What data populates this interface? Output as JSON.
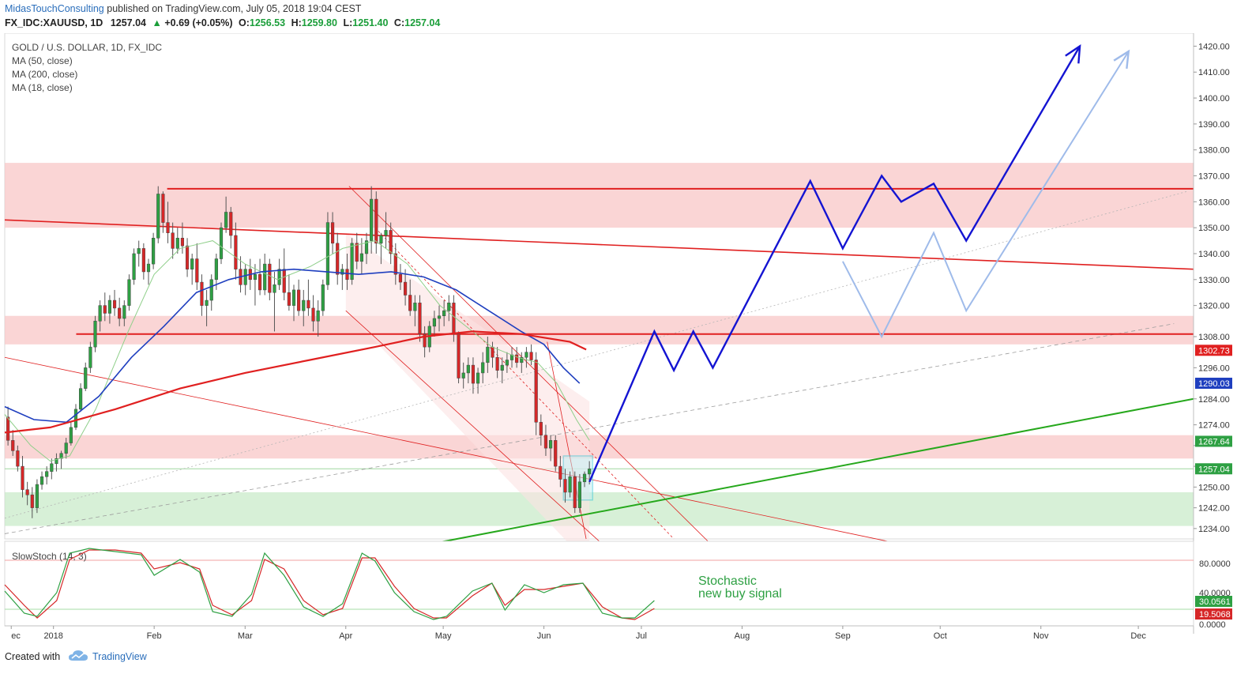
{
  "header": {
    "author": "MidasTouchConsulting",
    "published": " published on TradingView.com, July 05, 2018 19:04 CEST",
    "symbol": "FX_IDC:XAUUSD, 1D",
    "last": "1257.04",
    "change_arrow": "▲",
    "change": "+0.69 (+0.05%)",
    "open_label": "O:",
    "open": "1256.53",
    "high_label": "H:",
    "high": "1259.80",
    "low_label": "L:",
    "low": "1251.40",
    "close_label": "C:",
    "close": "1257.04"
  },
  "legend": {
    "title": "GOLD / U.S. DOLLAR, 1D, FX_IDC",
    "ma50": "MA (50, close)",
    "ma200": "MA (200, close)",
    "ma18": "MA (18, close)"
  },
  "stoch": {
    "label": "SlowStoch (14, 3)",
    "annotation_line1": "Stochastic",
    "annotation_line2": "new buy signal",
    "axis": [
      "80.0000",
      "40.0000",
      "0.0000"
    ],
    "badge_k": "30.0561",
    "badge_d": "19.5068"
  },
  "footer": {
    "created": "Created with",
    "brand": "TradingView"
  },
  "colors": {
    "up": "#2ea043",
    "down": "#d62728",
    "ma50": "#1f3fbf",
    "ma200": "#e02020",
    "ma18": "#8fcf8a",
    "resistance": "#e02020",
    "zone_red": "#f8c7c7",
    "zone_green": "#c9ebc9",
    "projection_dark": "#1414d2",
    "projection_light": "#9fbbea",
    "trend_green": "#26a81c"
  },
  "chart_data": {
    "type": "candlestick",
    "title": "GOLD / U.S. DOLLAR, 1D, FX_IDC",
    "ylim": [
      1230,
      1425
    ],
    "y_ticks": [
      1234,
      1242,
      1250,
      1258,
      1266,
      1274,
      1284,
      1296,
      1308,
      1320,
      1330,
      1340,
      1350,
      1360,
      1370,
      1380,
      1390,
      1400,
      1410,
      1420
    ],
    "y_tick_labels": [
      "1234.00",
      "1242.00",
      "1250.00",
      "",
      "",
      "1274.00",
      "1284.00",
      "1296.00",
      "1308.00",
      "1320.00",
      "1330.00",
      "1340.00",
      "1350.00",
      "1360.00",
      "1370.00",
      "1380.00",
      "1390.00",
      "1400.00",
      "1410.00",
      "1420.00"
    ],
    "x_labels": [
      "ec",
      "2018",
      "Feb",
      "Mar",
      "Apr",
      "May",
      "Jun",
      "Jul",
      "Aug",
      "Sep",
      "Oct",
      "Nov",
      "Dec"
    ],
    "x_label_days": [
      -12,
      1,
      32,
      60,
      91,
      121,
      152,
      182,
      213,
      244,
      274,
      305,
      335
    ],
    "xlim_days": [
      -14,
      352
    ],
    "badges": [
      {
        "value": "1302.73",
        "color": "#e02020"
      },
      {
        "value": "1290.03",
        "color": "#1f3fbf"
      },
      {
        "value": "1267.64",
        "color": "#2ea043"
      },
      {
        "value": "1257.04",
        "color": "#2ea043"
      }
    ],
    "zones": [
      {
        "low": 1350,
        "high": 1375,
        "color": "#f8c7c7"
      },
      {
        "low": 1305,
        "high": 1316,
        "color": "#f8c7c7"
      },
      {
        "low": 1261,
        "high": 1270,
        "color": "#f8c7c7"
      },
      {
        "low": 1235,
        "high": 1248,
        "color": "#c9ebc9"
      }
    ],
    "resistance_levels": [
      {
        "value": 1365,
        "from_day": 36
      },
      {
        "value": 1309,
        "from_day": 8
      }
    ],
    "last_price_line": 1257.04,
    "candles_ohlc": [
      [
        1277,
        1281,
        1266,
        1268
      ],
      [
        1268,
        1272,
        1262,
        1264
      ],
      [
        1264,
        1266,
        1256,
        1258
      ],
      [
        1258,
        1262,
        1246,
        1249
      ],
      [
        1249,
        1252,
        1243,
        1247
      ],
      [
        1247,
        1250,
        1238,
        1242
      ],
      [
        1242,
        1253,
        1240,
        1251
      ],
      [
        1251,
        1256,
        1249,
        1254
      ],
      [
        1254,
        1258,
        1251,
        1256
      ],
      [
        1256,
        1261,
        1253,
        1259
      ],
      [
        1259,
        1263,
        1256,
        1261
      ],
      [
        1261,
        1264,
        1257,
        1263
      ],
      [
        1263,
        1269,
        1261,
        1267
      ],
      [
        1267,
        1275,
        1266,
        1273
      ],
      [
        1273,
        1282,
        1272,
        1280
      ],
      [
        1280,
        1290,
        1279,
        1288
      ],
      [
        1288,
        1298,
        1287,
        1296
      ],
      [
        1296,
        1306,
        1294,
        1304
      ],
      [
        1304,
        1316,
        1302,
        1314
      ],
      [
        1314,
        1322,
        1310,
        1320
      ],
      [
        1320,
        1325,
        1314,
        1317
      ],
      [
        1317,
        1324,
        1313,
        1322
      ],
      [
        1322,
        1326,
        1316,
        1319
      ],
      [
        1319,
        1323,
        1312,
        1315
      ],
      [
        1315,
        1322,
        1312,
        1320
      ],
      [
        1320,
        1332,
        1318,
        1330
      ],
      [
        1330,
        1342,
        1328,
        1340
      ],
      [
        1340,
        1345,
        1335,
        1342
      ],
      [
        1342,
        1344,
        1330,
        1333
      ],
      [
        1333,
        1338,
        1328,
        1336
      ],
      [
        1336,
        1348,
        1334,
        1346
      ],
      [
        1346,
        1366,
        1344,
        1363
      ],
      [
        1363,
        1364,
        1348,
        1352
      ],
      [
        1352,
        1360,
        1344,
        1348
      ],
      [
        1348,
        1352,
        1338,
        1342
      ],
      [
        1342,
        1350,
        1340,
        1346
      ],
      [
        1346,
        1352,
        1340,
        1343
      ],
      [
        1343,
        1346,
        1331,
        1334
      ],
      [
        1334,
        1340,
        1328,
        1338
      ],
      [
        1338,
        1344,
        1326,
        1329
      ],
      [
        1329,
        1332,
        1316,
        1320
      ],
      [
        1320,
        1326,
        1312,
        1322
      ],
      [
        1322,
        1332,
        1318,
        1330
      ],
      [
        1330,
        1340,
        1326,
        1338
      ],
      [
        1338,
        1352,
        1336,
        1350
      ],
      [
        1350,
        1362,
        1348,
        1356
      ],
      [
        1356,
        1358,
        1342,
        1347
      ],
      [
        1347,
        1352,
        1330,
        1334
      ],
      [
        1334,
        1339,
        1325,
        1328
      ],
      [
        1328,
        1336,
        1324,
        1334
      ],
      [
        1334,
        1338,
        1326,
        1330
      ],
      [
        1330,
        1336,
        1320,
        1332
      ],
      [
        1332,
        1338,
        1324,
        1326
      ],
      [
        1326,
        1340,
        1324,
        1336
      ],
      [
        1336,
        1338,
        1322,
        1325
      ],
      [
        1325,
        1333,
        1310,
        1328
      ],
      [
        1328,
        1338,
        1326,
        1334
      ],
      [
        1334,
        1342,
        1322,
        1325
      ],
      [
        1325,
        1332,
        1318,
        1320
      ],
      [
        1320,
        1328,
        1314,
        1326
      ],
      [
        1326,
        1330,
        1316,
        1318
      ],
      [
        1318,
        1326,
        1312,
        1322
      ],
      [
        1322,
        1330,
        1316,
        1319
      ],
      [
        1319,
        1324,
        1310,
        1314
      ],
      [
        1314,
        1322,
        1308,
        1318
      ],
      [
        1318,
        1330,
        1316,
        1328
      ],
      [
        1328,
        1356,
        1326,
        1352
      ],
      [
        1352,
        1356,
        1340,
        1344
      ],
      [
        1344,
        1348,
        1328,
        1332
      ],
      [
        1332,
        1336,
        1326,
        1334
      ],
      [
        1334,
        1340,
        1326,
        1330
      ],
      [
        1330,
        1346,
        1328,
        1344
      ],
      [
        1344,
        1348,
        1334,
        1337
      ],
      [
        1337,
        1346,
        1332,
        1340
      ],
      [
        1340,
        1348,
        1336,
        1345
      ],
      [
        1345,
        1366,
        1340,
        1361
      ],
      [
        1361,
        1364,
        1340,
        1344
      ],
      [
        1344,
        1348,
        1336,
        1347
      ],
      [
        1347,
        1356,
        1342,
        1349
      ],
      [
        1349,
        1352,
        1336,
        1340
      ],
      [
        1340,
        1344,
        1328,
        1332
      ],
      [
        1332,
        1336,
        1326,
        1329
      ],
      [
        1329,
        1334,
        1320,
        1324
      ],
      [
        1324,
        1330,
        1316,
        1318
      ],
      [
        1318,
        1324,
        1312,
        1321
      ],
      [
        1321,
        1324,
        1306,
        1309
      ],
      [
        1309,
        1312,
        1300,
        1304
      ],
      [
        1304,
        1314,
        1302,
        1312
      ],
      [
        1312,
        1318,
        1308,
        1315
      ],
      [
        1315,
        1320,
        1310,
        1316
      ],
      [
        1316,
        1322,
        1312,
        1318
      ],
      [
        1318,
        1324,
        1314,
        1321
      ],
      [
        1321,
        1324,
        1306,
        1309
      ],
      [
        1309,
        1310,
        1290,
        1292
      ],
      [
        1292,
        1298,
        1288,
        1294
      ],
      [
        1294,
        1300,
        1290,
        1297
      ],
      [
        1297,
        1300,
        1286,
        1290
      ],
      [
        1290,
        1296,
        1286,
        1294
      ],
      [
        1294,
        1302,
        1290,
        1298
      ],
      [
        1298,
        1308,
        1294,
        1304
      ],
      [
        1304,
        1306,
        1296,
        1300
      ],
      [
        1300,
        1304,
        1292,
        1295
      ],
      [
        1295,
        1300,
        1290,
        1297
      ],
      [
        1297,
        1302,
        1294,
        1299
      ],
      [
        1299,
        1304,
        1296,
        1301
      ],
      [
        1301,
        1304,
        1296,
        1298
      ],
      [
        1298,
        1302,
        1294,
        1300
      ],
      [
        1300,
        1304,
        1296,
        1302
      ],
      [
        1302,
        1305,
        1297,
        1299
      ],
      [
        1299,
        1302,
        1270,
        1275
      ],
      [
        1275,
        1278,
        1266,
        1270
      ],
      [
        1270,
        1274,
        1262,
        1265
      ],
      [
        1265,
        1270,
        1260,
        1268
      ],
      [
        1268,
        1270,
        1256,
        1258
      ],
      [
        1258,
        1262,
        1250,
        1253
      ],
      [
        1253,
        1257,
        1244,
        1248
      ],
      [
        1248,
        1256,
        1246,
        1254
      ],
      [
        1254,
        1256,
        1240,
        1242
      ],
      [
        1242,
        1255,
        1240,
        1252
      ],
      [
        1252,
        1256,
        1250,
        1255
      ],
      [
        1255,
        1260,
        1251,
        1257
      ]
    ],
    "ma50": [
      [
        -14,
        1281
      ],
      [
        -5,
        1276
      ],
      [
        5,
        1275
      ],
      [
        15,
        1285
      ],
      [
        25,
        1300
      ],
      [
        35,
        1312
      ],
      [
        45,
        1325
      ],
      [
        55,
        1330
      ],
      [
        65,
        1333
      ],
      [
        75,
        1334
      ],
      [
        85,
        1333
      ],
      [
        95,
        1332
      ],
      [
        105,
        1333
      ],
      [
        115,
        1331
      ],
      [
        125,
        1326
      ],
      [
        135,
        1318
      ],
      [
        145,
        1310
      ],
      [
        152,
        1305
      ],
      [
        158,
        1296
      ],
      [
        163,
        1290
      ]
    ],
    "ma200": [
      [
        -14,
        1271
      ],
      [
        0,
        1273
      ],
      [
        20,
        1280
      ],
      [
        40,
        1288
      ],
      [
        60,
        1294
      ],
      [
        80,
        1299
      ],
      [
        100,
        1304
      ],
      [
        115,
        1308
      ],
      [
        130,
        1310
      ],
      [
        145,
        1309
      ],
      [
        160,
        1306
      ],
      [
        165,
        1303
      ]
    ],
    "ma18": [
      [
        -14,
        1278
      ],
      [
        -6,
        1266
      ],
      [
        0,
        1260
      ],
      [
        6,
        1262
      ],
      [
        14,
        1280
      ],
      [
        24,
        1310
      ],
      [
        32,
        1332
      ],
      [
        40,
        1342
      ],
      [
        50,
        1345
      ],
      [
        60,
        1336
      ],
      [
        70,
        1330
      ],
      [
        80,
        1335
      ],
      [
        90,
        1342
      ],
      [
        100,
        1345
      ],
      [
        110,
        1336
      ],
      [
        120,
        1320
      ],
      [
        128,
        1312
      ],
      [
        136,
        1304
      ],
      [
        144,
        1300
      ],
      [
        150,
        1298
      ],
      [
        156,
        1290
      ],
      [
        162,
        1276
      ],
      [
        166,
        1268
      ]
    ],
    "projection_dark": [
      [
        166,
        1252
      ],
      [
        186,
        1310
      ],
      [
        192,
        1295
      ],
      [
        198,
        1310
      ],
      [
        204,
        1296
      ],
      [
        234,
        1368
      ],
      [
        244,
        1342
      ],
      [
        256,
        1370
      ],
      [
        262,
        1360
      ],
      [
        272,
        1367
      ],
      [
        282,
        1345
      ],
      [
        317,
        1420
      ]
    ],
    "projection_light": [
      [
        244,
        1337
      ],
      [
        256,
        1308
      ],
      [
        272,
        1348
      ],
      [
        282,
        1318
      ],
      [
        332,
        1418
      ]
    ],
    "trend_green": {
      "from": [
        100,
        1224
      ],
      "to": [
        352,
        1284
      ]
    }
  },
  "stoch_data": {
    "k": [
      [
        -14,
        42
      ],
      [
        -8,
        14
      ],
      [
        -4,
        10
      ],
      [
        2,
        40
      ],
      [
        6,
        90
      ],
      [
        12,
        96
      ],
      [
        20,
        92
      ],
      [
        28,
        88
      ],
      [
        32,
        62
      ],
      [
        40,
        82
      ],
      [
        46,
        66
      ],
      [
        50,
        16
      ],
      [
        56,
        10
      ],
      [
        62,
        38
      ],
      [
        66,
        90
      ],
      [
        72,
        62
      ],
      [
        78,
        22
      ],
      [
        84,
        10
      ],
      [
        90,
        26
      ],
      [
        96,
        90
      ],
      [
        100,
        80
      ],
      [
        106,
        40
      ],
      [
        112,
        16
      ],
      [
        118,
        6
      ],
      [
        122,
        10
      ],
      [
        130,
        42
      ],
      [
        136,
        52
      ],
      [
        140,
        18
      ],
      [
        146,
        50
      ],
      [
        152,
        40
      ],
      [
        158,
        50
      ],
      [
        164,
        52
      ],
      [
        170,
        14
      ],
      [
        176,
        8
      ],
      [
        180,
        8
      ],
      [
        186,
        30
      ]
    ],
    "d": [
      [
        -14,
        50
      ],
      [
        -8,
        24
      ],
      [
        -4,
        8
      ],
      [
        2,
        30
      ],
      [
        6,
        82
      ],
      [
        12,
        94
      ],
      [
        20,
        94
      ],
      [
        28,
        90
      ],
      [
        32,
        70
      ],
      [
        40,
        78
      ],
      [
        46,
        70
      ],
      [
        50,
        24
      ],
      [
        56,
        12
      ],
      [
        62,
        30
      ],
      [
        66,
        82
      ],
      [
        72,
        70
      ],
      [
        78,
        30
      ],
      [
        84,
        12
      ],
      [
        90,
        20
      ],
      [
        96,
        84
      ],
      [
        100,
        84
      ],
      [
        106,
        48
      ],
      [
        112,
        20
      ],
      [
        118,
        8
      ],
      [
        122,
        8
      ],
      [
        130,
        36
      ],
      [
        136,
        52
      ],
      [
        140,
        24
      ],
      [
        146,
        44
      ],
      [
        152,
        44
      ],
      [
        158,
        48
      ],
      [
        164,
        52
      ],
      [
        170,
        22
      ],
      [
        176,
        8
      ],
      [
        180,
        6
      ],
      [
        186,
        20
      ]
    ]
  }
}
